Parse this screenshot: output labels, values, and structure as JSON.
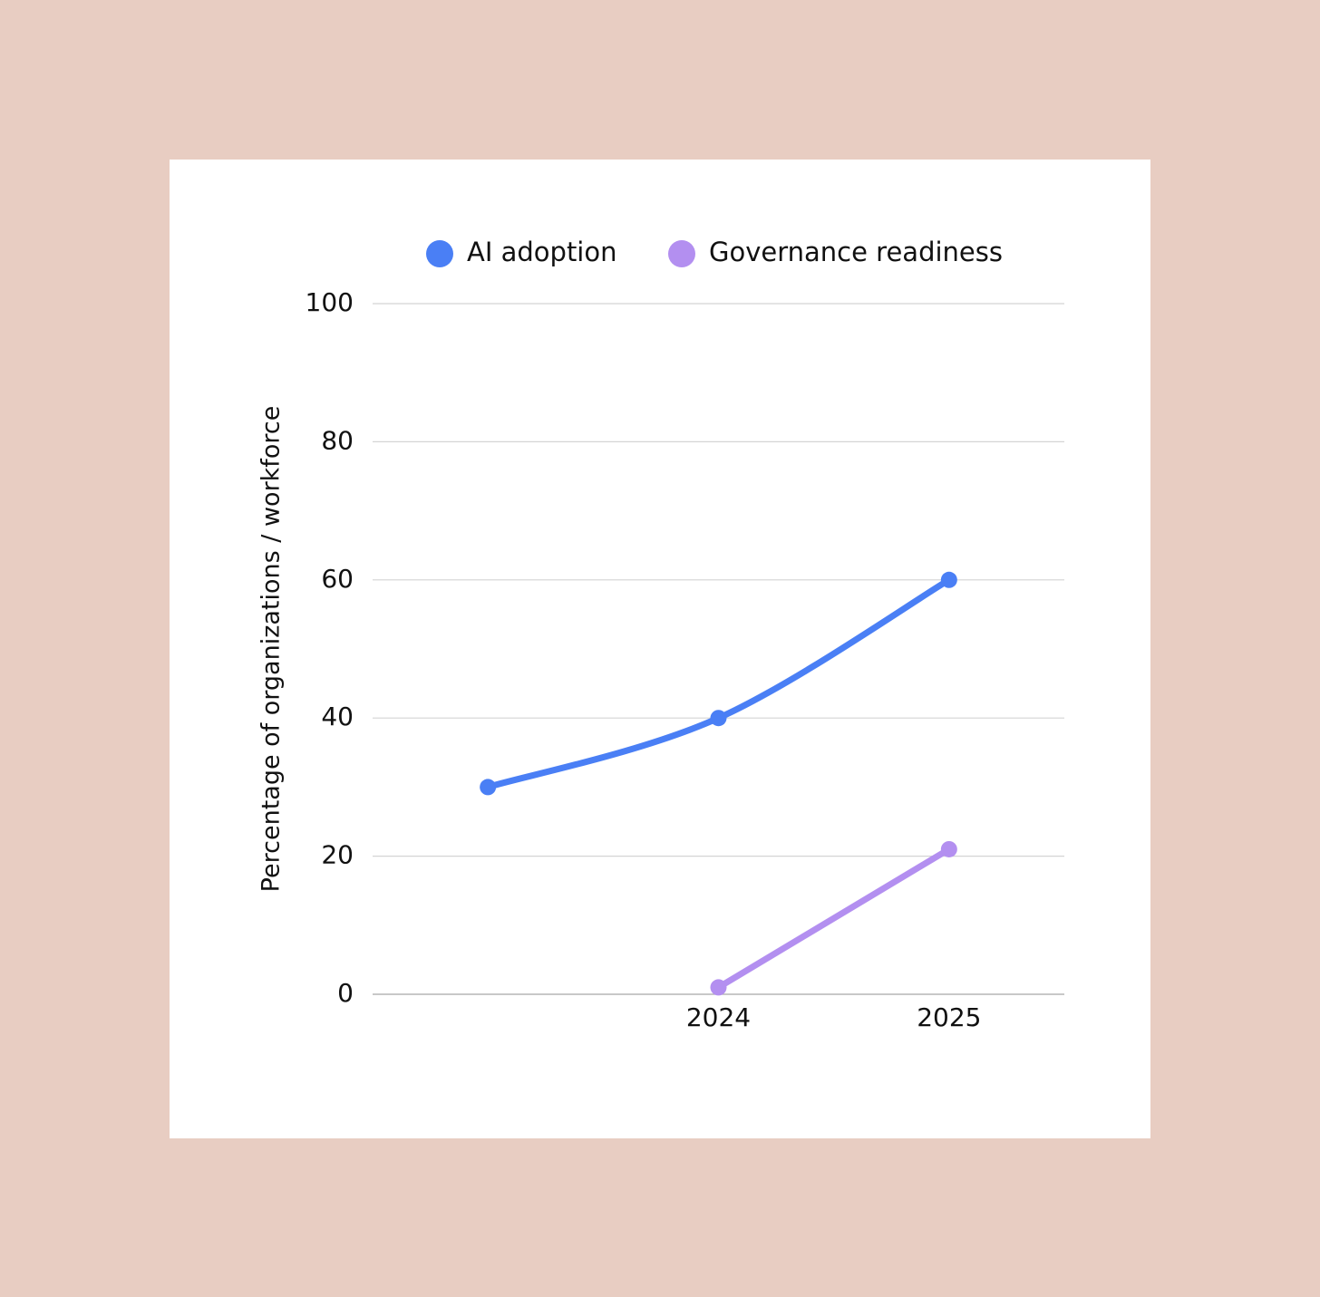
{
  "chart_data": {
    "type": "line",
    "y_label": "Percentage of organizations / workforce",
    "categories": [
      null,
      "2024",
      "2025"
    ],
    "series": [
      {
        "name": "AI adoption",
        "color": "#4a7ff5",
        "values": [
          30,
          40,
          60
        ]
      },
      {
        "name": "Governance readiness",
        "color": "#b38ff0",
        "values": [
          null,
          1,
          21
        ]
      }
    ],
    "ylim": [
      0,
      100
    ],
    "yticks": [
      0,
      20,
      40,
      60,
      80,
      100
    ],
    "grid": true,
    "legend": "top"
  }
}
